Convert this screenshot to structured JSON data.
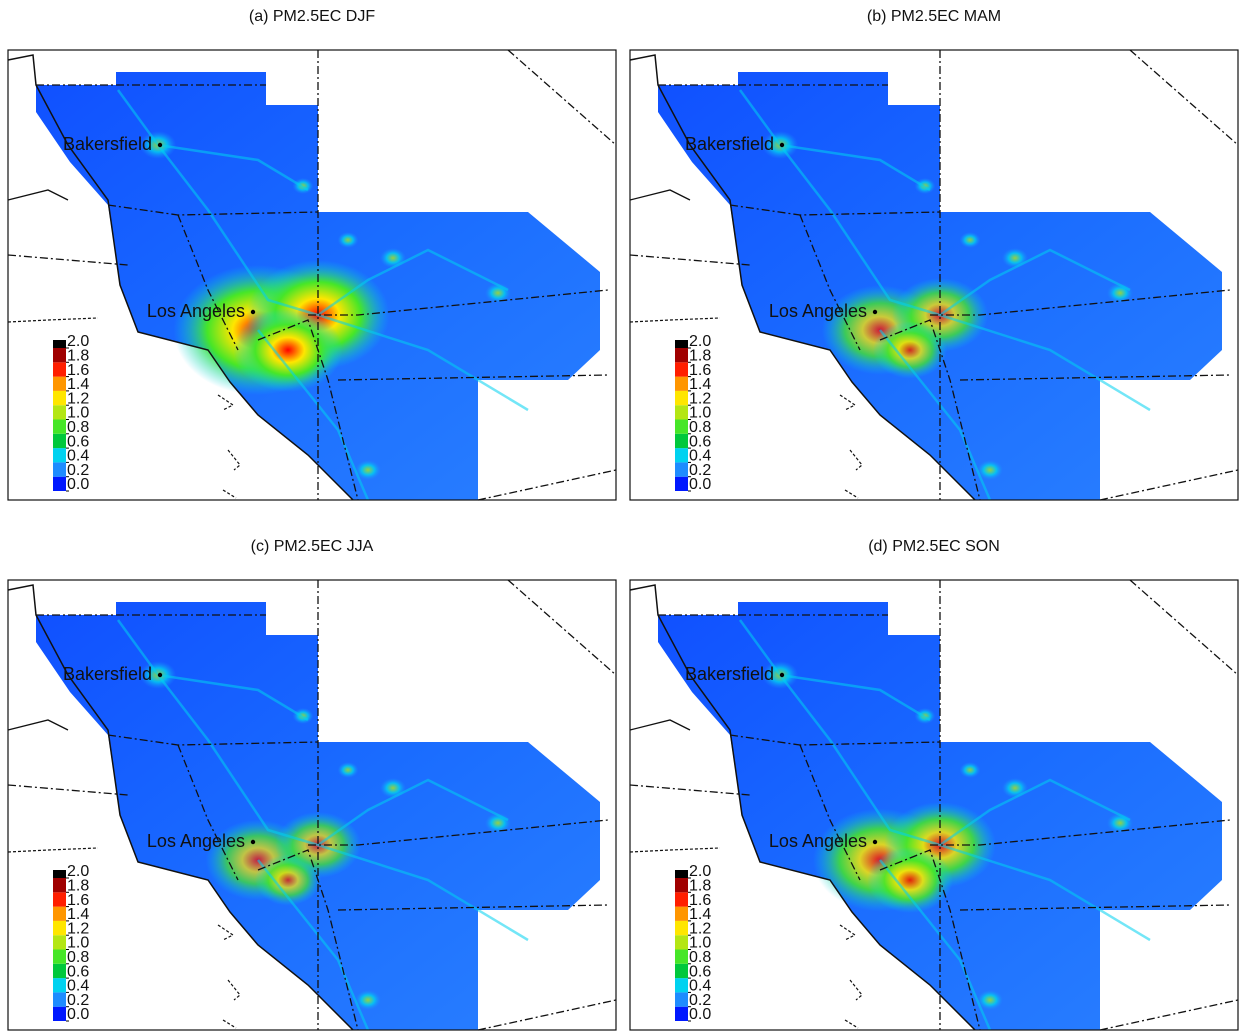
{
  "panels": [
    {
      "title": "(a) PM2.5EC DJF",
      "cities": [
        "Bakersfield",
        "Los Angeles"
      ]
    },
    {
      "title": "(b) PM2.5EC MAM",
      "cities": [
        "Bakersfield",
        "Los Angeles"
      ]
    },
    {
      "title": "(c) PM2.5EC JJA",
      "cities": [
        "Bakersfield",
        "Los Angeles"
      ]
    },
    {
      "title": "(d) PM2.5EC SON",
      "cities": [
        "Bakersfield",
        "Los Angeles"
      ]
    }
  ],
  "colorbar": {
    "ticks": [
      {
        "value": 0,
        "label": "0.0"
      },
      0.2,
      0.4,
      0.6,
      0.8,
      {
        "value": 1,
        "label": "1.0"
      },
      1.2,
      1.4,
      1.6,
      1.8,
      {
        "value": 2,
        "label": "2.0"
      }
    ],
    "colors": [
      "#0018ff",
      "#1e8cff",
      "#00d2f0",
      "#00c83c",
      "#46e628",
      "#b4e614",
      "#ffe600",
      "#ff9600",
      "#ff1e00",
      "#a00000"
    ]
  }
}
